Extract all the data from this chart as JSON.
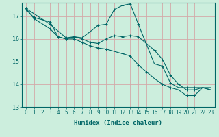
{
  "xlabel": "Humidex (Indice chaleur)",
  "bg_color": "#cceedd",
  "plot_bg_color": "#cceedd",
  "grid_color": "#d4a8a8",
  "line_color": "#006666",
  "xlim": [
    -0.5,
    23.5
  ],
  "ylim": [
    13.0,
    17.6
  ],
  "yticks": [
    13,
    14,
    15,
    16,
    17
  ],
  "xticks": [
    0,
    1,
    2,
    3,
    4,
    5,
    6,
    7,
    8,
    9,
    10,
    11,
    12,
    13,
    14,
    15,
    16,
    17,
    18,
    19,
    20,
    21,
    22,
    23
  ],
  "line1_x": [
    0,
    1,
    3,
    4,
    5,
    6,
    7,
    8,
    9,
    10,
    11,
    12,
    13,
    14,
    16,
    17,
    18,
    19,
    20,
    21,
    22,
    23
  ],
  "line1_y": [
    17.3,
    16.95,
    16.75,
    16.1,
    16.0,
    16.1,
    16.0,
    15.85,
    15.8,
    16.0,
    16.15,
    16.1,
    16.15,
    16.1,
    15.5,
    15.1,
    14.4,
    14.0,
    13.75,
    13.75,
    13.85,
    13.85
  ],
  "line2_x": [
    0,
    3,
    5,
    6,
    7,
    9,
    10,
    11,
    12,
    13,
    14,
    16,
    17,
    18,
    19,
    20,
    21,
    22,
    23
  ],
  "line2_y": [
    17.35,
    16.65,
    16.05,
    16.1,
    16.05,
    16.6,
    16.65,
    17.3,
    17.48,
    17.55,
    16.65,
    14.9,
    14.8,
    14.05,
    13.85,
    13.85,
    13.85,
    13.85,
    13.75
  ],
  "line3_x": [
    0,
    1,
    3,
    4,
    5,
    6,
    7,
    8,
    9,
    10,
    12,
    13,
    14,
    15,
    16,
    17,
    18,
    19,
    20,
    21,
    22,
    23
  ],
  "line3_y": [
    17.35,
    16.9,
    16.45,
    16.1,
    16.0,
    16.0,
    15.85,
    15.7,
    15.6,
    15.55,
    15.35,
    15.25,
    14.85,
    14.55,
    14.25,
    14.0,
    13.85,
    13.75,
    13.5,
    13.5,
    13.85,
    13.75
  ],
  "tick_fontsize": 5.5,
  "label_fontsize": 6.5
}
